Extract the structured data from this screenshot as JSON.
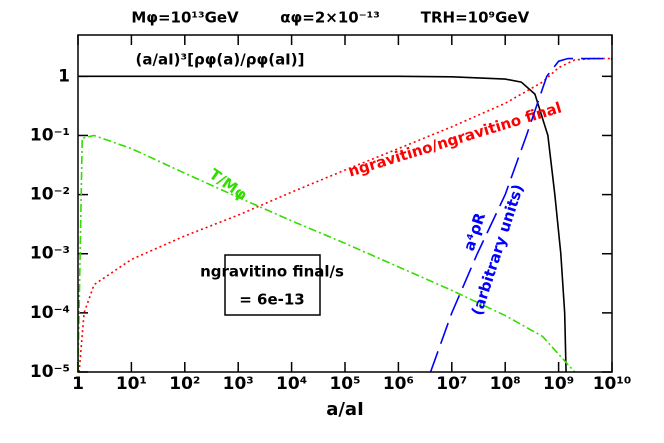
{
  "chart_data": {
    "type": "line",
    "x_label": "a/aI",
    "header": [
      "Mφ=10¹³GeV",
      "αφ=2×10⁻¹³",
      "TRH=10⁹GeV"
    ],
    "log_x": true,
    "log_y": true,
    "xlim": [
      1,
      10000000000
    ],
    "ylim": [
      1e-05,
      5
    ],
    "xticks": [
      {
        "value": 1,
        "label": "1"
      },
      {
        "value": 10,
        "label": "10¹"
      },
      {
        "value": 100,
        "label": "10²"
      },
      {
        "value": 1000,
        "label": "10³"
      },
      {
        "value": 10000,
        "label": "10⁴"
      },
      {
        "value": 100000,
        "label": "10⁵"
      },
      {
        "value": 1000000,
        "label": "10⁶"
      },
      {
        "value": 10000000,
        "label": "10⁷"
      },
      {
        "value": 100000000,
        "label": "10⁸"
      },
      {
        "value": 1000000000,
        "label": "10⁹"
      },
      {
        "value": 10000000000,
        "label": "10¹⁰"
      }
    ],
    "yticks": [
      {
        "value": 1e-05,
        "label": "10⁻⁵"
      },
      {
        "value": 0.0001,
        "label": "10⁻⁴"
      },
      {
        "value": 0.001,
        "label": "10⁻³"
      },
      {
        "value": 0.01,
        "label": "10⁻²"
      },
      {
        "value": 0.1,
        "label": "10⁻¹"
      },
      1
    ],
    "series": [
      {
        "name": "(a/aI)³[ρφ(a)/ρφ(aI)]",
        "color": "#000000",
        "style": "solid",
        "x": [
          1,
          1000000,
          10000000,
          100000000,
          200000000,
          360000000,
          630000000,
          850000000,
          1100000000,
          1300000000,
          1380000000
        ],
        "values": [
          1,
          1,
          0.98,
          0.9,
          0.8,
          0.5,
          0.1,
          0.01,
          0.001,
          0.0001,
          1e-05
        ]
      },
      {
        "name": "ngravitino/ngravitino final",
        "color": "#ff0000",
        "style": "dotted",
        "x": [
          1.05,
          1.3,
          2,
          10,
          100,
          1000,
          10000,
          100000,
          1000000,
          10000000,
          100000000,
          500000000,
          1000000000,
          2000000000,
          5000000000,
          10000000000
        ],
        "values": [
          1e-05,
          0.0001,
          0.0003,
          0.0008,
          0.002,
          0.0045,
          0.011,
          0.026,
          0.06,
          0.14,
          0.35,
          0.8,
          1.4,
          1.9,
          2,
          2
        ]
      },
      {
        "name": "T/Mφ",
        "color": "#33dd00",
        "style": "dashdot",
        "x": [
          1,
          1.2,
          2,
          10,
          100,
          1000,
          10000,
          100000,
          1000000,
          10000000,
          100000000,
          500000000,
          1000000000,
          2000000000
        ],
        "values": [
          1e-05,
          0.09,
          0.1,
          0.06,
          0.023,
          0.009,
          0.0036,
          0.0015,
          0.0006,
          0.00024,
          9e-05,
          4e-05,
          2e-05,
          1e-05
        ]
      },
      {
        "name": "a⁴ρR",
        "color": "#0000ff",
        "style": "dashed",
        "x": [
          4000000,
          10000000,
          30000000,
          100000000,
          250000000,
          600000000,
          1000000000,
          1500000000,
          10000000000
        ],
        "values": [
          1e-05,
          0.0001,
          0.001,
          0.01,
          0.1,
          1,
          1.8,
          2,
          2
        ]
      }
    ],
    "annotations": [
      "(arbitrary units)",
      "ngravitino final/s",
      "= 6e-13"
    ]
  }
}
